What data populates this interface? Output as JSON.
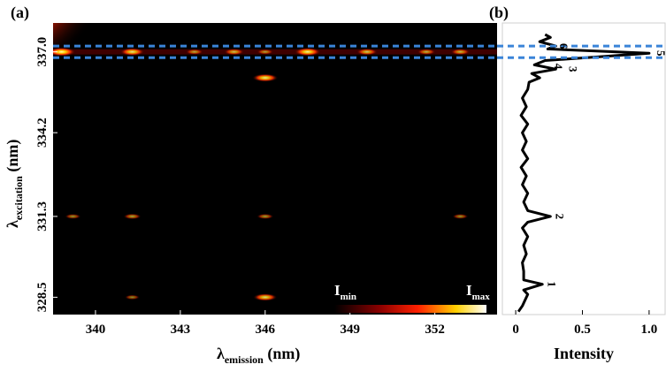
{
  "chart_data": [
    {
      "type": "heatmap",
      "panel_label": "(a)",
      "xlabel": {
        "main": "λ",
        "sub": "emission",
        "unit": " (nm)"
      },
      "ylabel": {
        "main": "λ",
        "sub": "excitation",
        "unit": " (nm)"
      },
      "xlim": [
        338.5,
        354.2
      ],
      "ylim": [
        327.9,
        338.0
      ],
      "x_ticks": [
        {
          "value": 340,
          "label": "340"
        },
        {
          "value": 343,
          "label": "343"
        },
        {
          "value": 346,
          "label": "346"
        },
        {
          "value": 349,
          "label": "349"
        },
        {
          "value": 352,
          "label": "352"
        }
      ],
      "y_ticks": [
        {
          "value": 337.0,
          "label": "337.0"
        },
        {
          "value": 334.2,
          "label": "334.2"
        },
        {
          "value": 331.3,
          "label": "331.3"
        },
        {
          "value": 328.5,
          "label": "328.5"
        }
      ],
      "colorbar": {
        "min_label": {
          "main": "I",
          "sub": "min"
        },
        "max_label": {
          "main": "I",
          "sub": "max"
        }
      },
      "highlight_band": {
        "y_low": 336.8,
        "y_high": 337.2
      },
      "hot_spots": [
        {
          "x": 338.8,
          "y": 337.0,
          "intensity": 1.0
        },
        {
          "x": 341.3,
          "y": 337.0,
          "intensity": 0.8
        },
        {
          "x": 343.5,
          "y": 337.0,
          "intensity": 0.4
        },
        {
          "x": 344.9,
          "y": 337.0,
          "intensity": 0.55
        },
        {
          "x": 346.0,
          "y": 337.0,
          "intensity": 0.35
        },
        {
          "x": 347.5,
          "y": 337.0,
          "intensity": 0.9
        },
        {
          "x": 349.6,
          "y": 337.0,
          "intensity": 0.6
        },
        {
          "x": 351.7,
          "y": 337.0,
          "intensity": 0.45
        },
        {
          "x": 352.9,
          "y": 337.0,
          "intensity": 0.5
        },
        {
          "x": 346.0,
          "y": 336.1,
          "intensity": 0.85
        },
        {
          "x": 346.0,
          "y": 328.5,
          "intensity": 0.75
        },
        {
          "x": 341.3,
          "y": 331.3,
          "intensity": 0.4
        },
        {
          "x": 339.2,
          "y": 331.3,
          "intensity": 0.3
        },
        {
          "x": 346.0,
          "y": 331.3,
          "intensity": 0.35
        },
        {
          "x": 352.9,
          "y": 331.3,
          "intensity": 0.3
        },
        {
          "x": 341.3,
          "y": 328.5,
          "intensity": 0.25
        }
      ]
    },
    {
      "type": "line",
      "panel_label": "(b)",
      "xlabel": "Intensity",
      "ylim": [
        327.9,
        338.0
      ],
      "xlim": [
        -0.1,
        1.12
      ],
      "x_ticks": [
        {
          "value": 0,
          "label": "0"
        },
        {
          "value": 0.5,
          "label": "0.5"
        },
        {
          "value": 1.0,
          "label": "1.0"
        }
      ],
      "highlight_band": {
        "y_low": 336.8,
        "y_high": 337.2
      },
      "series": [
        {
          "points": [
            [
              0.02,
              328.0
            ],
            [
              0.05,
              328.2
            ],
            [
              0.07,
              328.4
            ],
            [
              0.09,
              328.6
            ],
            [
              0.06,
              328.75
            ],
            [
              0.2,
              328.95
            ],
            [
              0.06,
              329.1
            ],
            [
              0.06,
              329.4
            ],
            [
              0.05,
              329.7
            ],
            [
              0.08,
              330.0
            ],
            [
              0.06,
              330.3
            ],
            [
              0.09,
              330.6
            ],
            [
              0.05,
              330.9
            ],
            [
              0.09,
              331.1
            ],
            [
              0.26,
              331.3
            ],
            [
              0.09,
              331.5
            ],
            [
              0.06,
              331.8
            ],
            [
              0.09,
              332.1
            ],
            [
              0.05,
              332.4
            ],
            [
              0.08,
              332.7
            ],
            [
              0.04,
              333.0
            ],
            [
              0.09,
              333.3
            ],
            [
              0.05,
              333.6
            ],
            [
              0.08,
              333.9
            ],
            [
              0.05,
              334.2
            ],
            [
              0.09,
              334.5
            ],
            [
              0.04,
              334.8
            ],
            [
              0.08,
              335.1
            ],
            [
              0.05,
              335.4
            ],
            [
              0.09,
              335.7
            ],
            [
              0.1,
              335.95
            ],
            [
              0.18,
              336.1
            ],
            [
              0.12,
              336.25
            ],
            [
              0.3,
              336.4
            ],
            [
              0.14,
              336.55
            ],
            [
              0.22,
              336.7
            ],
            [
              1.0,
              336.95
            ],
            [
              0.24,
              337.1
            ],
            [
              0.3,
              337.2
            ],
            [
              0.18,
              337.35
            ],
            [
              0.26,
              337.5
            ],
            [
              0.22,
              337.6
            ]
          ]
        }
      ],
      "peak_labels": [
        {
          "label": "1",
          "x": 0.24,
          "y": 328.95
        },
        {
          "label": "2",
          "x": 0.3,
          "y": 331.3
        },
        {
          "label": "3",
          "x": 0.4,
          "y": 336.4
        },
        {
          "label": "4",
          "x": 0.29,
          "y": 336.5
        },
        {
          "label": "5",
          "x": 1.06,
          "y": 336.95
        },
        {
          "label": "6",
          "x": 0.33,
          "y": 337.2
        }
      ]
    }
  ]
}
